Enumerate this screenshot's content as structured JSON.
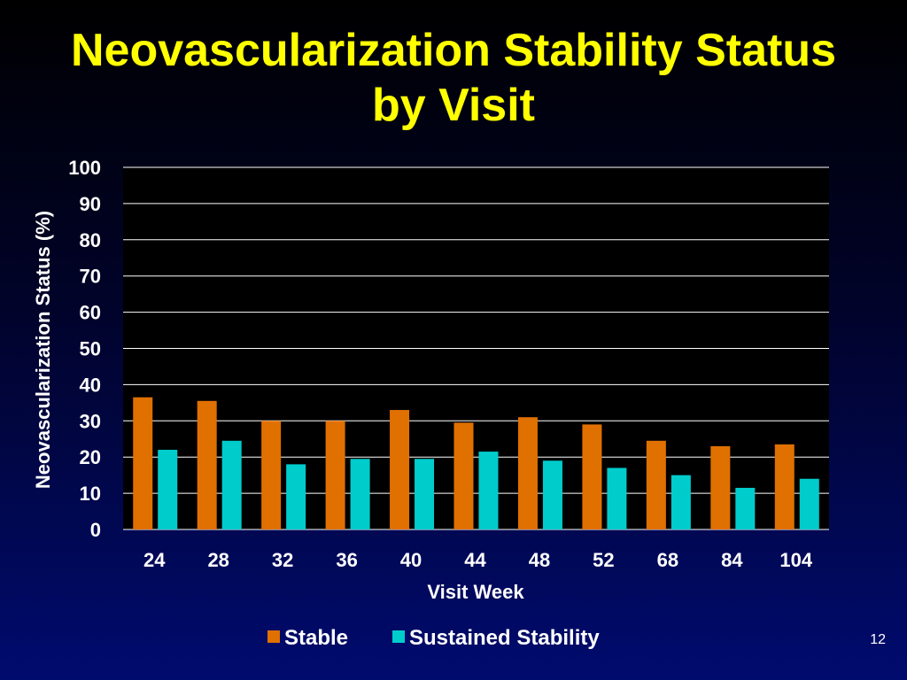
{
  "slide": {
    "title_line1": "Neovascularization Stability Status",
    "title_line2": "by Visit",
    "page_number": "12"
  },
  "colors": {
    "title": "#ffff00",
    "stable": "#e07000",
    "sustained": "#00cccc",
    "plot_background": "#000000",
    "gridline": "#ffffff",
    "text": "#ffffff"
  },
  "chart_data": {
    "type": "bar",
    "xlabel": "Visit Week",
    "ylabel": "Neovascularization Status (%)",
    "ylim": [
      0,
      100
    ],
    "yticks": [
      0,
      10,
      20,
      30,
      40,
      50,
      60,
      70,
      80,
      90,
      100
    ],
    "categories": [
      "24",
      "28",
      "32",
      "36",
      "40",
      "44",
      "48",
      "52",
      "68",
      "84",
      "104"
    ],
    "series": [
      {
        "name": "Stable",
        "color": "#e07000",
        "values": [
          36.5,
          35.5,
          30,
          30,
          33,
          29.5,
          31,
          29,
          24.5,
          23,
          23.5
        ]
      },
      {
        "name": "Sustained Stability",
        "color": "#00cccc",
        "values": [
          22,
          24.5,
          18,
          19.5,
          19.5,
          21.5,
          19,
          17,
          15,
          11.5,
          14
        ]
      }
    ],
    "grid": true,
    "legend_position": "bottom-center"
  }
}
